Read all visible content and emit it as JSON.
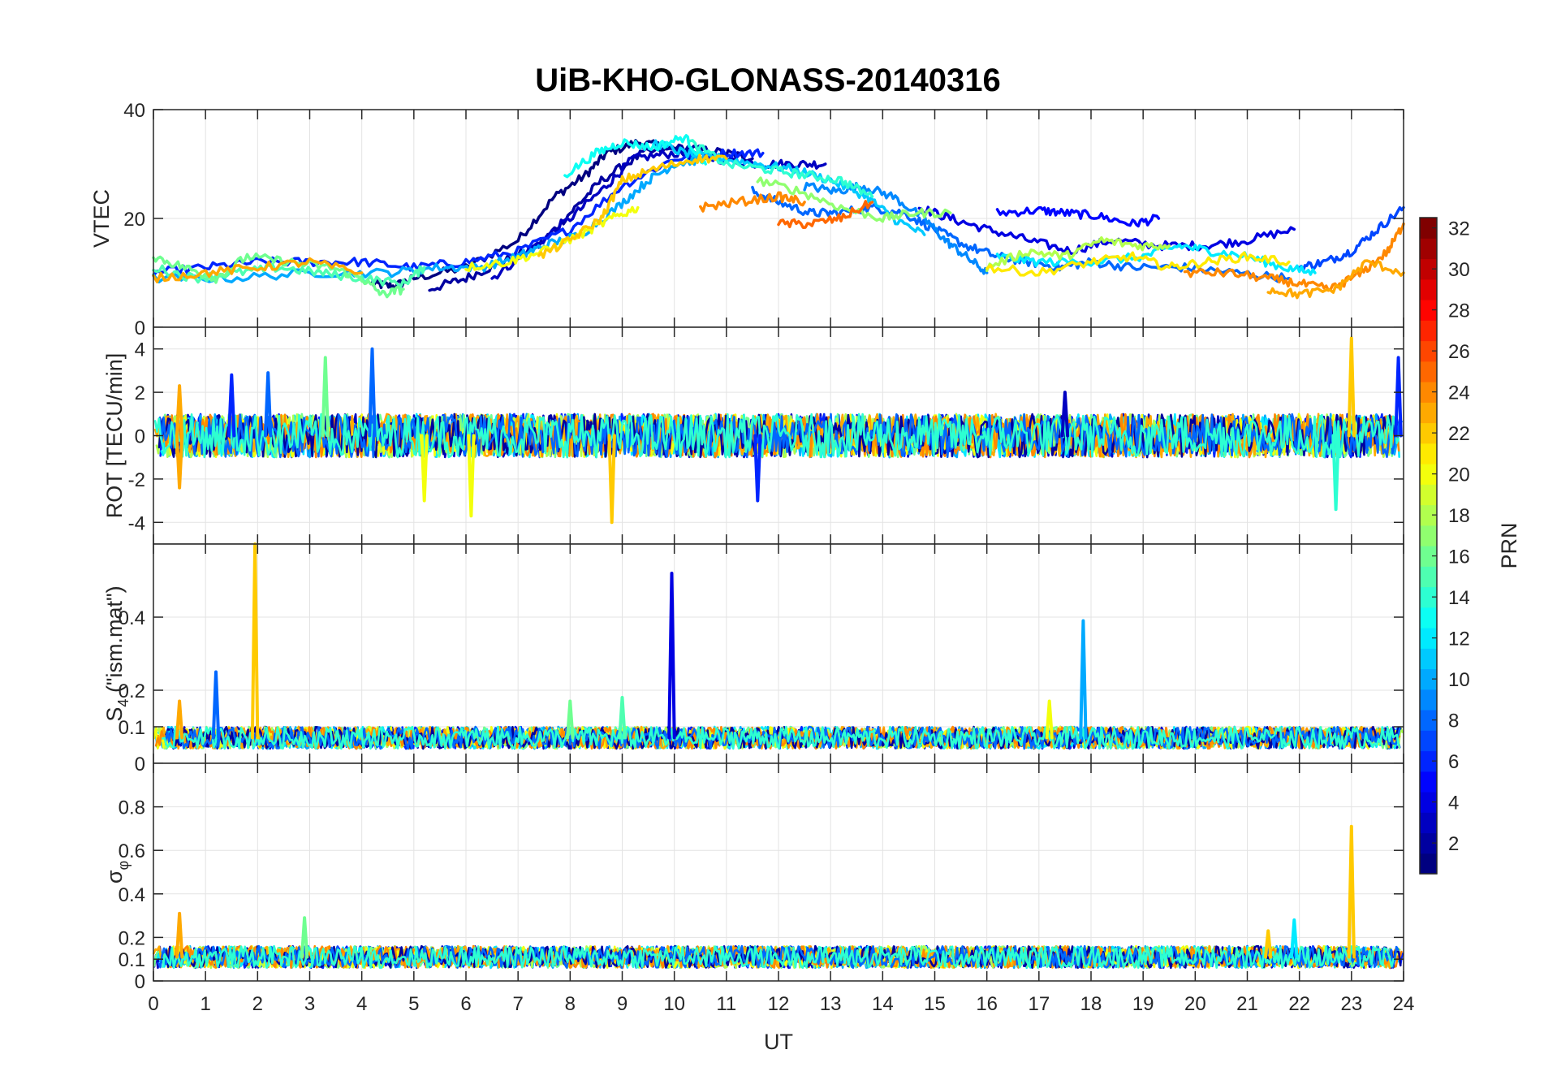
{
  "chart_data": [
    {
      "type": "line",
      "title": "UiB-KHO-GLONASS-20140316",
      "ylabel": "VTEC",
      "ylim": [
        0,
        40
      ],
      "yticks": [
        "0",
        "20",
        "40"
      ],
      "xlim": [
        0,
        24
      ],
      "grid": true,
      "color_by": "PRN",
      "series": [
        {
          "prn": 1,
          "x": [
            4.2,
            4.6,
            5.0,
            6.0,
            7.0,
            7.7,
            8.3,
            8.7,
            9.3,
            9.9,
            10.4
          ],
          "y": [
            8,
            7.5,
            9,
            11,
            16,
            24,
            28,
            32,
            34,
            33,
            32
          ]
        },
        {
          "prn": 2,
          "x": [
            5.3,
            6.0,
            6.7,
            7.4,
            8.0,
            8.6,
            9.4,
            10.2,
            11.0,
            11.5
          ],
          "y": [
            7,
            9,
            12,
            15,
            21,
            27,
            32,
            33,
            32,
            31
          ]
        },
        {
          "prn": 3,
          "x": [
            6.5,
            7.2,
            8.0,
            8.7,
            9.2,
            10.0,
            10.8,
            11.6,
            12.3,
            12.9
          ],
          "y": [
            9,
            14,
            20,
            26,
            31,
            32,
            31,
            30,
            30,
            30
          ]
        },
        {
          "prn": 4,
          "x": [
            14.7,
            15.3,
            16.0,
            16.8,
            17.6,
            18.4,
            19.3,
            20.2,
            21.0,
            21.9
          ],
          "y": [
            22,
            20,
            18,
            16,
            14,
            16,
            15,
            15,
            16,
            18
          ]
        },
        {
          "prn": 5,
          "x": [
            16.2,
            17.0,
            17.5,
            18.1,
            18.8,
            19.3
          ],
          "y": [
            21,
            21.5,
            21,
            20.5,
            19,
            20
          ]
        },
        {
          "prn": 6,
          "x": [
            0.0,
            1.0,
            2.0,
            3.0,
            4.0,
            5.0,
            6.0,
            7.0,
            8.0,
            9.0,
            10.0,
            11.0,
            11.7
          ],
          "y": [
            10,
            11,
            12,
            12,
            12,
            11,
            12,
            14,
            18,
            26,
            31,
            32,
            32
          ]
        },
        {
          "prn": 7,
          "x": [
            22.0,
            22.5,
            23.0,
            23.5,
            24.0
          ],
          "y": [
            11,
            12,
            14,
            18,
            22
          ]
        },
        {
          "prn": 8,
          "x": [
            11.5,
            12.0,
            12.6,
            13.1,
            13.8,
            14.4,
            15.0,
            15.6,
            16.2,
            16.8,
            17.4,
            18.0,
            18.8,
            19.8,
            20.8,
            21.8
          ],
          "y": [
            25,
            23,
            21,
            21,
            22,
            21,
            18,
            15,
            13,
            12,
            11,
            12,
            11,
            11,
            10,
            9
          ]
        },
        {
          "prn": 9,
          "x": [
            12.5,
            13.1,
            13.6,
            14.2,
            14.8,
            15.2,
            15.6,
            16.0
          ],
          "y": [
            26,
            25,
            26,
            24,
            20,
            16,
            13,
            10
          ]
        },
        {
          "prn": 10,
          "x": [
            0.0,
            1.5,
            3.0,
            4.5,
            5.5,
            6.3,
            7.0,
            7.5,
            8.2,
            8.9,
            9.5,
            10.0,
            10.6
          ],
          "y": [
            9,
            9,
            10,
            10,
            11,
            11,
            13,
            15,
            17,
            22,
            27,
            30,
            31
          ]
        },
        {
          "prn": 11,
          "x": [
            9.6,
            10.2,
            10.9,
            11.6,
            12.3,
            13.0,
            13.7,
            14.2,
            14.8
          ],
          "y": [
            34,
            32,
            31,
            30,
            29,
            27,
            24,
            20,
            17
          ]
        },
        {
          "prn": 12,
          "x": [
            16.2,
            17.0,
            18.0,
            19.0,
            19.7,
            20.3,
            21.0,
            21.7,
            22.3
          ],
          "y": [
            13,
            12,
            12,
            13,
            15,
            14,
            13,
            11,
            10
          ]
        },
        {
          "prn": 13,
          "x": [
            7.9,
            8.5,
            9.0,
            9.6,
            10.2,
            10.6
          ],
          "y": [
            28,
            32,
            34,
            33,
            35,
            30
          ]
        },
        {
          "prn": 14,
          "x": [
            10.3,
            11.0,
            11.8,
            12.5,
            13.2,
            13.8
          ],
          "y": [
            34,
            30,
            29,
            28,
            27,
            24
          ]
        },
        {
          "prn": 15,
          "x": [
            0.0,
            0.8,
            1.6,
            2.4,
            3.2,
            4.0,
            4.8,
            5.2
          ],
          "y": [
            11,
            9,
            10,
            11,
            10,
            9,
            8,
            11
          ]
        },
        {
          "prn": 16,
          "x": [
            0.0,
            0.6,
            1.2,
            1.8,
            2.6,
            3.4,
            4.0,
            4.4,
            4.8
          ],
          "y": [
            13,
            11,
            9,
            13,
            12,
            11,
            9,
            6,
            7
          ]
        },
        {
          "prn": 17,
          "x": [
            11.6,
            12.4,
            13.2,
            14.0,
            14.6,
            15.3
          ],
          "y": [
            27,
            25,
            22,
            20,
            21,
            21
          ]
        },
        {
          "prn": 18,
          "x": [
            16.0,
            16.8,
            17.5,
            18.2,
            18.9,
            19.5
          ],
          "y": [
            11,
            14,
            13,
            16,
            15,
            15
          ]
        },
        {
          "prn": 20,
          "x": [
            6.0,
            6.8,
            7.5,
            8.2,
            8.8,
            9.3
          ],
          "y": [
            11,
            12,
            14,
            17,
            20,
            22
          ]
        },
        {
          "prn": 21,
          "x": [
            16.0,
            17.0,
            18.0,
            18.8,
            19.5,
            20.2,
            21.0,
            21.8
          ],
          "y": [
            11,
            10,
            12,
            13,
            11,
            12,
            13,
            12
          ]
        },
        {
          "prn": 22,
          "x": [
            7.4,
            8.0,
            8.6,
            9.0,
            9.6,
            10.4,
            11.0
          ],
          "y": [
            13,
            16,
            20,
            27,
            29,
            31,
            31
          ]
        },
        {
          "prn": 23,
          "x": [
            0.0,
            1.0,
            2.0,
            3.0,
            4.0
          ],
          "y": [
            9,
            10,
            11,
            12,
            10
          ]
        },
        {
          "prn": 24,
          "x": [
            10.5,
            11.2,
            12.0,
            12.5
          ],
          "y": [
            22,
            23,
            24,
            23
          ]
        },
        {
          "prn": 25,
          "x": [
            12.0,
            12.6,
            13.2,
            13.8
          ],
          "y": [
            19,
            19,
            20,
            23
          ]
        },
        {
          "prn": 24,
          "x": [
            19.8,
            20.6,
            21.4,
            22.0,
            22.6,
            23.2,
            23.7,
            24.0
          ],
          "y": [
            10,
            10,
            9,
            8,
            7,
            10,
            14,
            19
          ]
        },
        {
          "prn": 23,
          "x": [
            21.4,
            22.0,
            22.7,
            23.3,
            24.0
          ],
          "y": [
            7,
            6,
            7,
            12,
            10
          ]
        }
      ]
    },
    {
      "type": "line",
      "ylabel": "ROT [TECU/min]",
      "ylim": [
        -5,
        5
      ],
      "yticks": [
        "-4",
        "-2",
        "0",
        "2",
        "4"
      ],
      "xlim": [
        0,
        24
      ],
      "grid": true,
      "series_description_values": {
        "baseline": 0,
        "noise_amplitude": 1,
        "spikes": [
          {
            "x": 0.5,
            "y": -2.4,
            "prn": 23
          },
          {
            "x": 0.5,
            "y": 2.3,
            "prn": 23
          },
          {
            "x": 1.5,
            "y": 2.8,
            "prn": 6
          },
          {
            "x": 2.2,
            "y": 2.9,
            "prn": 8
          },
          {
            "x": 3.3,
            "y": 3.6,
            "prn": 16
          },
          {
            "x": 4.2,
            "y": 4.0,
            "prn": 8
          },
          {
            "x": 5.2,
            "y": -3.0,
            "prn": 20
          },
          {
            "x": 6.1,
            "y": -3.7,
            "prn": 20
          },
          {
            "x": 8.8,
            "y": -4.0,
            "prn": 22
          },
          {
            "x": 11.6,
            "y": -3.0,
            "prn": 6
          },
          {
            "x": 17.5,
            "y": 2.0,
            "prn": 3
          },
          {
            "x": 22.7,
            "y": -3.4,
            "prn": 14
          },
          {
            "x": 23.0,
            "y": 4.5,
            "prn": 22
          },
          {
            "x": 23.9,
            "y": 3.6,
            "prn": 6
          }
        ]
      }
    },
    {
      "type": "line",
      "ylabel": "S",
      "ylabel_subscript": "4",
      "ylabel_suffix": " (\"ism.mat\")",
      "ylim": [
        0,
        0.6
      ],
      "yticks": [
        "0",
        "0.1",
        "0.2",
        "0.4"
      ],
      "xlim": [
        0,
        24
      ],
      "grid": true,
      "series_description_values": {
        "baseline": 0.07,
        "noise_amplitude": 0.03,
        "spikes": [
          {
            "x": 0.5,
            "y": 0.17,
            "prn": 23
          },
          {
            "x": 1.2,
            "y": 0.25,
            "prn": 8
          },
          {
            "x": 1.95,
            "y": 0.6,
            "prn": 22
          },
          {
            "x": 9.95,
            "y": 0.52,
            "prn": 4
          },
          {
            "x": 17.85,
            "y": 0.39,
            "prn": 10
          },
          {
            "x": 8.0,
            "y": 0.17,
            "prn": 16
          },
          {
            "x": 9.0,
            "y": 0.18,
            "prn": 15
          },
          {
            "x": 17.2,
            "y": 0.17,
            "prn": 20
          }
        ]
      }
    },
    {
      "type": "line",
      "ylabel": "σ",
      "ylabel_subscript": "φ",
      "ylim": [
        0,
        1
      ],
      "yticks": [
        "0",
        "0.1",
        "0.2",
        "0.4",
        "0.6",
        "0.8"
      ],
      "xlabel": "UT",
      "xticks": [
        "0",
        "1",
        "2",
        "3",
        "4",
        "5",
        "6",
        "7",
        "8",
        "9",
        "10",
        "11",
        "12",
        "13",
        "14",
        "15",
        "16",
        "17",
        "18",
        "19",
        "20",
        "21",
        "22",
        "23",
        "24"
      ],
      "xlim": [
        0,
        24
      ],
      "grid": true,
      "series_description_values": {
        "baseline": 0.11,
        "noise_amplitude": 0.05,
        "spikes": [
          {
            "x": 0.5,
            "y": 0.31,
            "prn": 23
          },
          {
            "x": 2.9,
            "y": 0.29,
            "prn": 16
          },
          {
            "x": 21.4,
            "y": 0.23,
            "prn": 22
          },
          {
            "x": 21.9,
            "y": 0.28,
            "prn": 12
          },
          {
            "x": 23.0,
            "y": 0.71,
            "prn": 22
          }
        ]
      }
    }
  ],
  "colorbar": {
    "label": "PRN",
    "range": [
      1,
      32
    ],
    "ticks": [
      "2",
      "4",
      "6",
      "8",
      "10",
      "12",
      "14",
      "16",
      "18",
      "20",
      "22",
      "24",
      "26",
      "28",
      "30",
      "32"
    ],
    "colormap": "jet",
    "levels": 32
  }
}
